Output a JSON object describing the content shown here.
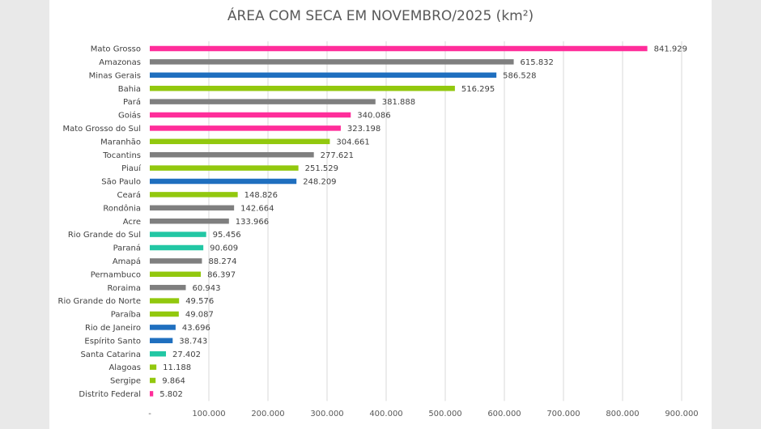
{
  "chart_data": {
    "type": "bar",
    "orientation": "horizontal",
    "title": "ÁREA COM SECA EM NOVEMBRO/2025 (km²)",
    "xlim": [
      0,
      900000
    ],
    "xticks": [
      0,
      100000,
      200000,
      300000,
      400000,
      500000,
      600000,
      700000,
      800000,
      900000
    ],
    "xtick_labels": [
      "-",
      "100.000",
      "200.000",
      "300.000",
      "400.000",
      "500.000",
      "600.000",
      "700.000",
      "800.000",
      "900.000"
    ],
    "grid": true,
    "legend": "none",
    "colors": {
      "pink": "#ff2d9a",
      "gray": "#7f7f7f",
      "blue": "#1f6fbf",
      "green": "#92c80e",
      "teal": "#22c7a4"
    },
    "bars": [
      {
        "label": "Mato Grosso",
        "value": 841929,
        "value_label": "841.929",
        "color": "pink"
      },
      {
        "label": "Amazonas",
        "value": 615832,
        "value_label": "615.832",
        "color": "gray"
      },
      {
        "label": "Minas Gerais",
        "value": 586528,
        "value_label": "586.528",
        "color": "blue"
      },
      {
        "label": "Bahia",
        "value": 516295,
        "value_label": "516.295",
        "color": "green"
      },
      {
        "label": "Pará",
        "value": 381888,
        "value_label": "381.888",
        "color": "gray"
      },
      {
        "label": "Goiás",
        "value": 340086,
        "value_label": "340.086",
        "color": "pink"
      },
      {
        "label": "Mato Grosso do Sul",
        "value": 323198,
        "value_label": "323.198",
        "color": "pink"
      },
      {
        "label": "Maranhão",
        "value": 304661,
        "value_label": "304.661",
        "color": "green"
      },
      {
        "label": "Tocantins",
        "value": 277621,
        "value_label": "277.621",
        "color": "gray"
      },
      {
        "label": "Piauí",
        "value": 251529,
        "value_label": "251.529",
        "color": "green"
      },
      {
        "label": "São Paulo",
        "value": 248209,
        "value_label": "248.209",
        "color": "blue"
      },
      {
        "label": "Ceará",
        "value": 148826,
        "value_label": "148.826",
        "color": "green"
      },
      {
        "label": "Rondônia",
        "value": 142664,
        "value_label": "142.664",
        "color": "gray"
      },
      {
        "label": "Acre",
        "value": 133966,
        "value_label": "133.966",
        "color": "gray"
      },
      {
        "label": "Rio Grande do Sul",
        "value": 95456,
        "value_label": "95.456",
        "color": "teal"
      },
      {
        "label": "Paraná",
        "value": 90609,
        "value_label": "90.609",
        "color": "teal"
      },
      {
        "label": "Amapá",
        "value": 88274,
        "value_label": "88.274",
        "color": "gray"
      },
      {
        "label": "Pernambuco",
        "value": 86397,
        "value_label": "86.397",
        "color": "green"
      },
      {
        "label": "Roraima",
        "value": 60943,
        "value_label": "60.943",
        "color": "gray"
      },
      {
        "label": "Rio Grande do Norte",
        "value": 49576,
        "value_label": "49.576",
        "color": "green"
      },
      {
        "label": "Paraíba",
        "value": 49087,
        "value_label": "49.087",
        "color": "green"
      },
      {
        "label": "Rio de Janeiro",
        "value": 43696,
        "value_label": "43.696",
        "color": "blue"
      },
      {
        "label": "Espírito Santo",
        "value": 38743,
        "value_label": "38.743",
        "color": "blue"
      },
      {
        "label": "Santa Catarina",
        "value": 27402,
        "value_label": "27.402",
        "color": "teal"
      },
      {
        "label": "Alagoas",
        "value": 11188,
        "value_label": "11.188",
        "color": "green"
      },
      {
        "label": "Sergipe",
        "value": 9864,
        "value_label": "9.864",
        "color": "green"
      },
      {
        "label": "Distrito Federal",
        "value": 5802,
        "value_label": "5.802",
        "color": "pink"
      }
    ]
  }
}
